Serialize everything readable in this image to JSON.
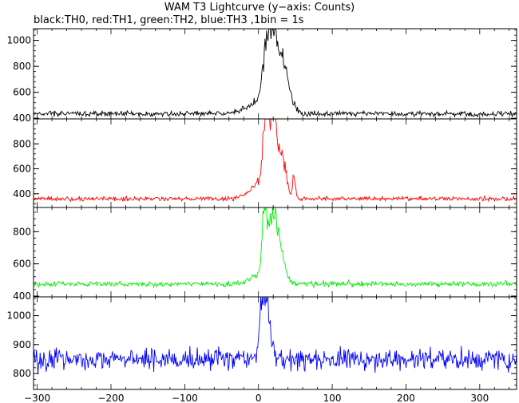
{
  "title": "WAM T3 Lightcurve (y−axis: Counts)",
  "subtitle": "black:TH0, red:TH1, green:TH2, blue:TH3 ,1bin = 1s",
  "chart_data": {
    "type": "line",
    "x_range": [
      -305,
      350
    ],
    "x_ticks": [
      -300,
      -200,
      -100,
      0,
      100,
      200,
      300
    ],
    "panels": [
      {
        "name": "TH0",
        "color": "#000000",
        "ylim": [
          395,
          1090
        ],
        "y_ticks": [
          400,
          600,
          800,
          1000
        ],
        "baseline": 435,
        "noise": 18,
        "peaks": [
          [
            2,
            90,
            18
          ],
          [
            10,
            360,
            5
          ],
          [
            16,
            430,
            3
          ],
          [
            22,
            380,
            3
          ],
          [
            28,
            300,
            4
          ],
          [
            35,
            250,
            5
          ],
          [
            42,
            120,
            6
          ]
        ]
      },
      {
        "name": "TH1",
        "color": "#ff0000",
        "ylim": [
          290,
          1000
        ],
        "y_ticks": [
          400,
          600,
          800
        ],
        "baseline": 360,
        "noise": 14,
        "peaks": [
          [
            3,
            120,
            14
          ],
          [
            10,
            520,
            4
          ],
          [
            14,
            320,
            4
          ],
          [
            22,
            480,
            3
          ],
          [
            28,
            250,
            5
          ],
          [
            35,
            200,
            4
          ],
          [
            48,
            180,
            2
          ]
        ]
      },
      {
        "name": "TH2",
        "color": "#00ee00",
        "ylim": [
          395,
          950
        ],
        "y_ticks": [
          400,
          600,
          800
        ],
        "baseline": 475,
        "noise": 14,
        "peaks": [
          [
            3,
            60,
            14
          ],
          [
            8,
            380,
            3
          ],
          [
            14,
            180,
            4
          ],
          [
            20,
            260,
            4
          ],
          [
            26,
            190,
            5
          ],
          [
            33,
            100,
            5
          ]
        ]
      },
      {
        "name": "TH3",
        "color": "#0000ff",
        "ylim": [
          745,
          1065
        ],
        "y_ticks": [
          800,
          900,
          1000
        ],
        "baseline": 850,
        "noise": 32,
        "peaks": [
          [
            3,
            120,
            3
          ],
          [
            8,
            160,
            3
          ],
          [
            12,
            110,
            3
          ],
          [
            16,
            60,
            4
          ]
        ]
      }
    ]
  }
}
